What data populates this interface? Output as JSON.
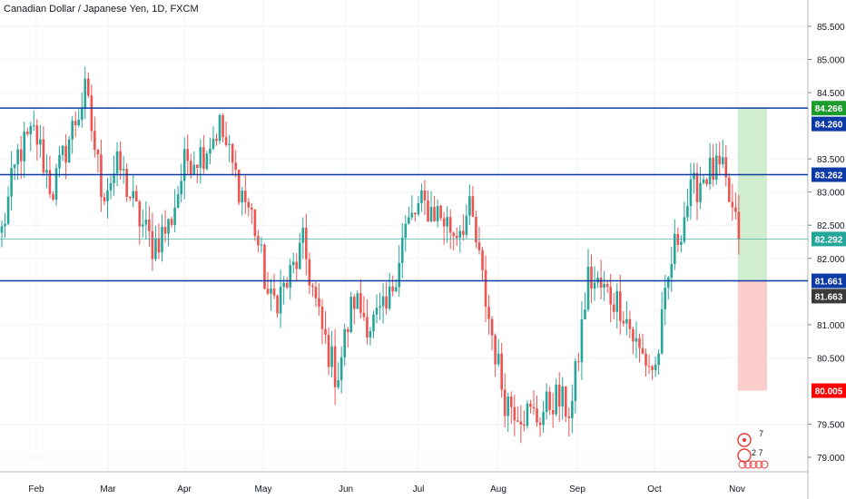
{
  "chart_data": {
    "type": "candlestick",
    "title": "Canadian Dollar / Japanese Yen, 1D, FXCM",
    "ylim": [
      78.85,
      85.75
    ],
    "y_ticks": [
      "85.500",
      "85.000",
      "84.500",
      "83.500",
      "83.000",
      "82.500",
      "82.000",
      "81.000",
      "80.500",
      "79.500",
      "79.000"
    ],
    "x_ticks": [
      "Feb",
      "Mar",
      "Apr",
      "May",
      "Jun",
      "Jul",
      "Aug",
      "Sep",
      "Oct",
      "Nov"
    ],
    "colors": {
      "up": "#26a69a",
      "down": "#ef5350",
      "level": "#0d3ba6",
      "target_zone": "#c8ebc7",
      "stop_zone": "#fbc4c4",
      "current": "#26a69a",
      "stop_label": "#ff0000",
      "target_label": "#1b9c2c",
      "entry_label": "#3a3a3a"
    },
    "horizontal_levels": [
      84.266,
      83.262,
      81.661
    ],
    "current_price": 82.292,
    "position_box": {
      "entry": 81.663,
      "target": 84.266,
      "stop": 80.005
    },
    "price_labels": [
      {
        "value": 84.266,
        "text": "84.266",
        "color": "#1b9c2c"
      },
      {
        "value": 84.26,
        "text": "84.260",
        "color": "#0d3ba6"
      },
      {
        "value": 83.262,
        "text": "83.262",
        "color": "#0d3ba6"
      },
      {
        "value": 82.292,
        "text": "82.292",
        "color": "#26a69a"
      },
      {
        "value": 81.661,
        "text": "81.661",
        "color": "#0d3ba6"
      },
      {
        "value": 81.663,
        "text": "81.663",
        "color": "#3a3a3a"
      },
      {
        "value": 80.005,
        "text": "80.005",
        "color": "#ff0000"
      }
    ],
    "watermark_text": [
      "7",
      "2 7"
    ],
    "close_keypoints": [
      [
        "Jan",
        82.4
      ],
      [
        "Feb",
        83.6
      ],
      [
        "Feb",
        83.9
      ],
      [
        "Feb",
        83.0
      ],
      [
        "Feb",
        83.8
      ],
      [
        "Mar",
        84.5
      ],
      [
        "Mar",
        83.0
      ],
      [
        "Mar",
        83.4
      ],
      [
        "Mar",
        82.7
      ],
      [
        "Mar",
        82.2
      ],
      [
        "Mar",
        82.5
      ],
      [
        "Apr",
        83.5
      ],
      [
        "Apr",
        83.6
      ],
      [
        "Apr",
        84.0
      ],
      [
        "Apr",
        83.2
      ],
      [
        "May",
        82.6
      ],
      [
        "May",
        81.3
      ],
      [
        "May",
        81.6
      ],
      [
        "May",
        82.2
      ],
      [
        "May",
        81.0
      ],
      [
        "Jun",
        80.2
      ],
      [
        "Jun",
        81.4
      ],
      [
        "Jun",
        81.0
      ],
      [
        "Jun",
        81.2
      ],
      [
        "Jun",
        82.4
      ],
      [
        "Jul",
        82.8
      ],
      [
        "Jul",
        82.7
      ],
      [
        "Jul",
        82.4
      ],
      [
        "Jul",
        82.7
      ],
      [
        "Aug",
        81.2
      ],
      [
        "Aug",
        79.9
      ],
      [
        "Aug",
        79.7
      ],
      [
        "Aug",
        79.6
      ],
      [
        "Aug",
        79.9
      ],
      [
        "Sep",
        79.7
      ],
      [
        "Sep",
        81.7
      ],
      [
        "Sep",
        81.5
      ],
      [
        "Sep",
        81.3
      ],
      [
        "Sep",
        80.6
      ],
      [
        "Oct",
        80.3
      ],
      [
        "Oct",
        82.0
      ],
      [
        "Oct",
        82.9
      ],
      [
        "Oct",
        83.3
      ],
      [
        "Oct",
        83.3
      ],
      [
        "Nov",
        82.29
      ]
    ]
  }
}
